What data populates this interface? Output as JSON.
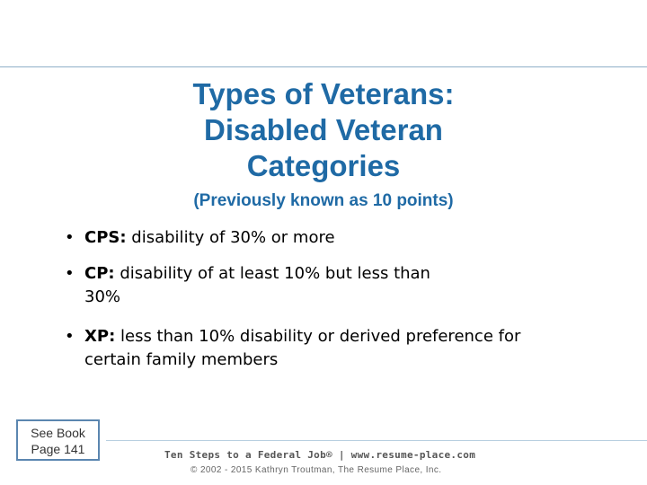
{
  "slide": {
    "title_lines": [
      "Types of Veterans:",
      "Disabled Veteran",
      "Categories"
    ],
    "subtitle": "(Previously known as 10 points)",
    "bullets": [
      {
        "term": "CPS:",
        "text": " disability of 30% or more"
      },
      {
        "term": "CP:",
        "text": " disability of at least 10% but less than 30%"
      },
      {
        "term": "XP:",
        "text": " less than 10% disability or derived preference for certain family members"
      }
    ],
    "book_ref": {
      "line1": "See Book",
      "line2": "Page 141"
    },
    "footer": {
      "main": "Ten Steps to a Federal Job®  |  www.resume-place.com",
      "copyright": "© 2002 - 2015 Kathryn Troutman, The Resume Place, Inc."
    }
  },
  "colors": {
    "title": "#1f6aa5",
    "rule": "#8fb0c8",
    "box_border": "#5b86b0"
  }
}
